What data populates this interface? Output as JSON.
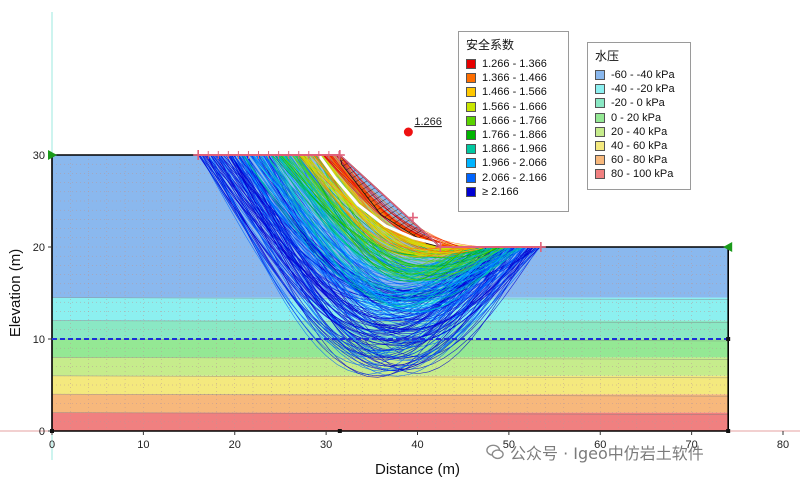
{
  "chart_data": {
    "type": "slope-stability-section",
    "xlabel": "Distance (m)",
    "ylabel": "Elevation (m)",
    "xlim": [
      0,
      80
    ],
    "ylim": [
      0,
      30
    ],
    "x_ticks": [
      0,
      10,
      20,
      30,
      40,
      50,
      60,
      70,
      80
    ],
    "y_ticks": [
      0,
      10,
      20,
      30
    ],
    "grid": true,
    "ground_profile": [
      [
        0,
        30
      ],
      [
        31.5,
        30
      ],
      [
        42.5,
        20
      ],
      [
        74,
        20
      ],
      [
        74,
        0
      ],
      [
        0,
        0
      ]
    ],
    "water_table_elevation": 10,
    "pore_pressure_bands": [
      {
        "from": 0,
        "to": 2,
        "range": "80 - 100 kPa",
        "color": "#f08080"
      },
      {
        "from": 2,
        "to": 4,
        "range": "60 - 80 kPa",
        "color": "#f7b87c"
      },
      {
        "from": 4,
        "to": 6,
        "range": "40 - 60 kPa",
        "color": "#f4e97e"
      },
      {
        "from": 6,
        "to": 8,
        "range": "20 - 40 kPa",
        "color": "#c6ec8c"
      },
      {
        "from": 8,
        "to": 10,
        "range": "0 - 20 kPa",
        "color": "#94e894"
      },
      {
        "from": 10,
        "to": 12,
        "range": "-20 - 0 kPa",
        "color": "#8ae8c4"
      },
      {
        "from": 12,
        "to": 14.5,
        "range": "-40 - -20 kPa",
        "color": "#8cf0f0"
      },
      {
        "from": 14.5,
        "to": 30,
        "range": "-60 - -40 kPa",
        "color": "#8ab8ee"
      }
    ],
    "critical_surface": {
      "factor_of_safety": "1.266",
      "label": "1.266",
      "center": [
        39,
        32.5
      ]
    },
    "slip_surface_color_map": [
      "#e60000",
      "#ff7000",
      "#ffc800",
      "#c8e600",
      "#64d200",
      "#00b400",
      "#00c8a0",
      "#00b4ff",
      "#0064ff",
      "#0000d2"
    ]
  },
  "legend_fos": {
    "title": "安全系数",
    "items": [
      {
        "label": "1.266 - 1.366",
        "color": "#e60000"
      },
      {
        "label": "1.366 - 1.466",
        "color": "#ff6e00"
      },
      {
        "label": "1.466 - 1.566",
        "color": "#ffc800"
      },
      {
        "label": "1.566 - 1.666",
        "color": "#c8e600"
      },
      {
        "label": "1.666 - 1.766",
        "color": "#5ad200"
      },
      {
        "label": "1.766 - 1.866",
        "color": "#00b400"
      },
      {
        "label": "1.866 - 1.966",
        "color": "#00c8a0"
      },
      {
        "label": "1.966 - 2.066",
        "color": "#00b4ff"
      },
      {
        "label": "2.066 - 2.166",
        "color": "#0064ff"
      },
      {
        "label": "≥ 2.166",
        "color": "#0000d2"
      }
    ]
  },
  "legend_pw": {
    "title": "水压",
    "items": [
      {
        "label": "-60 - -40 kPa",
        "color": "#8ab8ee"
      },
      {
        "label": "-40 - -20 kPa",
        "color": "#8cf0f0"
      },
      {
        "label": "-20 - 0 kPa",
        "color": "#8ae8c4"
      },
      {
        "label": "0 - 20 kPa",
        "color": "#94e894"
      },
      {
        "label": "20 - 40 kPa",
        "color": "#c6ec8c"
      },
      {
        "label": "40 - 60 kPa",
        "color": "#f4e97e"
      },
      {
        "label": "60 - 80 kPa",
        "color": "#f7b87c"
      },
      {
        "label": "80 - 100 kPa",
        "color": "#f08080"
      }
    ]
  },
  "watermark": {
    "text": "公众号 · Igeo中仿岩土软件"
  }
}
